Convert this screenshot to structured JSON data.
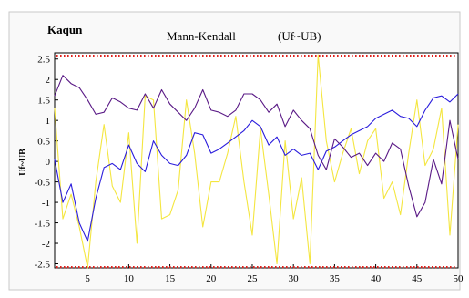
{
  "chart_data": {
    "type": "line",
    "station": "Kaqun",
    "title": "Mann-Kendall",
    "subtitle": "(Uf~UB)",
    "ylabel": "Uf~UB",
    "xlim": [
      1,
      50
    ],
    "ylim": [
      -2.6,
      2.65
    ],
    "xticks": [
      5,
      10,
      15,
      20,
      25,
      30,
      35,
      40,
      45,
      50
    ],
    "yticks": [
      2.5,
      2,
      1.5,
      1,
      0.5,
      0,
      -0.5,
      -1,
      -1.5,
      -2,
      -2.5
    ],
    "grid": false,
    "legend": "none",
    "reference_lines": [
      {
        "y": 2.58,
        "color": "#e0201b"
      },
      {
        "y": -2.58,
        "color": "#e0201b"
      }
    ],
    "series": [
      {
        "color": "#2a1cdc",
        "x": [
          1,
          2,
          3,
          4,
          5,
          6,
          7,
          8,
          9,
          10,
          11,
          12,
          13,
          14,
          15,
          16,
          17,
          18,
          19,
          20,
          21,
          22,
          23,
          24,
          25,
          26,
          27,
          28,
          29,
          30,
          31,
          32,
          33,
          34,
          35,
          36,
          37,
          38,
          39,
          40,
          41,
          42,
          43,
          44,
          45,
          46,
          47,
          48,
          49,
          50
        ],
        "values": [
          0.05,
          -1.0,
          -0.55,
          -1.5,
          -1.95,
          -0.9,
          -0.15,
          -0.05,
          -0.2,
          0.4,
          -0.05,
          -0.25,
          0.5,
          0.15,
          -0.05,
          -0.1,
          0.15,
          0.7,
          0.65,
          0.2,
          0.3,
          0.45,
          0.6,
          0.75,
          1.0,
          0.85,
          0.4,
          0.6,
          0.15,
          0.3,
          0.15,
          0.2,
          -0.2,
          0.25,
          0.35,
          0.5,
          0.65,
          0.75,
          0.85,
          1.05,
          1.15,
          1.25,
          1.1,
          1.05,
          0.85,
          1.25,
          1.55,
          1.6,
          1.45,
          1.65
        ]
      },
      {
        "color": "#5a1a86",
        "x": [
          1,
          2,
          3,
          4,
          5,
          6,
          7,
          8,
          9,
          10,
          11,
          12,
          13,
          14,
          15,
          16,
          17,
          18,
          19,
          20,
          21,
          22,
          23,
          24,
          25,
          26,
          27,
          28,
          29,
          30,
          31,
          32,
          33,
          34,
          35,
          36,
          37,
          38,
          39,
          40,
          41,
          42,
          43,
          44,
          45,
          46,
          47,
          48,
          49,
          50
        ],
        "values": [
          1.6,
          2.1,
          1.9,
          1.8,
          1.5,
          1.15,
          1.2,
          1.55,
          1.45,
          1.3,
          1.25,
          1.65,
          1.3,
          1.75,
          1.4,
          1.2,
          1.0,
          1.3,
          1.75,
          1.25,
          1.2,
          1.1,
          1.25,
          1.65,
          1.65,
          1.5,
          1.2,
          1.4,
          0.85,
          1.25,
          1.0,
          0.8,
          0.15,
          -0.2,
          0.55,
          0.35,
          0.1,
          0.2,
          -0.1,
          0.2,
          0.0,
          0.45,
          0.3,
          -0.6,
          -1.35,
          -1.0,
          0.05,
          -0.55,
          1.0,
          0.05
        ]
      },
      {
        "color": "#f4e640",
        "x": [
          1,
          2,
          3,
          4,
          5,
          6,
          7,
          8,
          9,
          10,
          11,
          12,
          13,
          14,
          15,
          16,
          17,
          18,
          19,
          20,
          21,
          22,
          23,
          24,
          25,
          26,
          27,
          28,
          29,
          30,
          31,
          32,
          33,
          34,
          35,
          36,
          37,
          38,
          39,
          40,
          41,
          42,
          43,
          44,
          45,
          46,
          47,
          48,
          49,
          50
        ],
        "values": [
          1.3,
          -1.4,
          -0.8,
          -1.6,
          -2.6,
          -0.5,
          0.9,
          -0.6,
          -1.0,
          0.7,
          -2.0,
          1.6,
          1.5,
          -1.4,
          -1.3,
          -0.7,
          1.5,
          0.2,
          -1.6,
          -0.5,
          -0.5,
          0.2,
          1.1,
          -0.5,
          -1.8,
          0.8,
          -0.8,
          -2.5,
          0.5,
          -1.4,
          -0.4,
          -2.5,
          2.6,
          0.5,
          -0.5,
          0.2,
          0.8,
          -0.3,
          0.5,
          0.8,
          -0.9,
          -0.5,
          -1.3,
          0.2,
          1.5,
          -0.1,
          0.3,
          1.3,
          -1.8,
          0.9
        ]
      }
    ]
  }
}
